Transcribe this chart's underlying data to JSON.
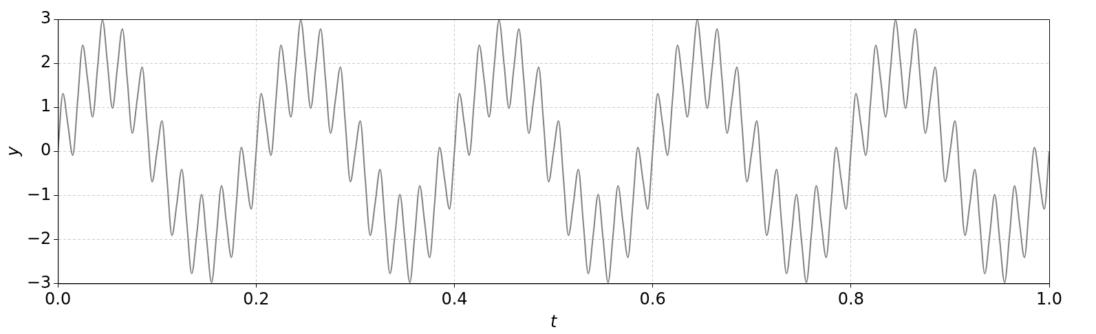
{
  "chart_data": {
    "type": "line",
    "xlabel": "t",
    "ylabel": "y",
    "x": [
      0,
      0.005,
      0.01,
      0.015,
      0.02,
      0.025,
      0.03,
      0.035,
      0.04,
      0.045,
      0.05,
      0.055,
      0.06,
      0.065,
      0.07,
      0.075,
      0.08,
      0.085,
      0.09,
      0.095,
      0.1,
      0.105,
      0.11,
      0.115,
      0.12,
      0.125,
      0.13,
      0.135,
      0.14,
      0.145,
      0.15,
      0.155,
      0.16,
      0.165,
      0.17,
      0.175,
      0.18,
      0.185,
      0.19,
      0.195,
      0.2,
      0.205,
      0.21,
      0.215,
      0.22,
      0.225,
      0.23,
      0.235,
      0.24,
      0.245,
      0.25,
      0.255,
      0.26,
      0.265,
      0.27,
      0.275,
      0.28,
      0.285,
      0.29,
      0.295,
      0.3,
      0.305,
      0.31,
      0.315,
      0.32,
      0.325,
      0.33,
      0.335,
      0.34,
      0.345,
      0.35,
      0.355,
      0.36,
      0.365,
      0.37,
      0.375,
      0.38,
      0.385,
      0.39,
      0.395,
      0.4,
      0.405,
      0.41,
      0.415,
      0.42,
      0.425,
      0.43,
      0.435,
      0.44,
      0.445,
      0.45,
      0.455,
      0.46,
      0.465,
      0.47,
      0.475,
      0.48,
      0.485,
      0.49,
      0.495,
      0.5,
      0.505,
      0.51,
      0.515,
      0.52,
      0.525,
      0.53,
      0.535,
      0.54,
      0.545,
      0.55,
      0.555,
      0.56,
      0.565,
      0.57,
      0.575,
      0.58,
      0.585,
      0.59,
      0.595,
      0.6,
      0.605,
      0.61,
      0.615,
      0.62,
      0.625,
      0.63,
      0.635,
      0.64,
      0.645,
      0.65,
      0.655,
      0.66,
      0.665,
      0.67,
      0.675,
      0.68,
      0.685,
      0.69,
      0.695,
      0.7,
      0.705,
      0.71,
      0.715,
      0.72,
      0.725,
      0.73,
      0.735,
      0.74,
      0.745,
      0.75,
      0.755,
      0.76,
      0.765,
      0.77,
      0.775,
      0.78,
      0.785,
      0.79,
      0.795,
      0.8,
      0.805,
      0.81,
      0.815,
      0.82,
      0.825,
      0.83,
      0.835,
      0.84,
      0.845,
      0.85,
      0.855,
      0.86,
      0.865,
      0.87,
      0.875,
      0.88,
      0.885,
      0.89,
      0.895,
      0.9,
      0.905,
      0.91,
      0.915,
      0.92,
      0.925,
      0.93,
      0.935,
      0.94,
      0.945,
      0.95,
      0.955,
      0.96,
      0.965,
      0.97,
      0.975,
      0.98,
      0.985,
      0.99,
      0.995,
      1
    ],
    "series": [
      {
        "color": "#808080",
        "values": [
          0,
          1.31,
          0.62,
          -0.09,
          1.18,
          2.41,
          1.62,
          0.78,
          1.9,
          2.98,
          2,
          0.98,
          1.9,
          2.78,
          1.62,
          0.41,
          1.18,
          1.91,
          0.62,
          -0.69,
          0,
          0.69,
          -0.62,
          -1.91,
          -1.18,
          -0.41,
          -1.62,
          -2.78,
          -1.9,
          -0.98,
          -2,
          -2.98,
          -1.9,
          -0.78,
          -1.62,
          -2.41,
          -1.18,
          0.09,
          -0.62,
          -1.31,
          0,
          1.31,
          0.62,
          -0.09,
          1.18,
          2.41,
          1.62,
          0.78,
          1.9,
          2.98,
          2,
          0.98,
          1.9,
          2.78,
          1.62,
          0.41,
          1.18,
          1.91,
          0.62,
          -0.69,
          0,
          0.69,
          -0.62,
          -1.91,
          -1.18,
          -0.41,
          -1.62,
          -2.78,
          -1.9,
          -0.98,
          -2,
          -2.98,
          -1.9,
          -0.78,
          -1.62,
          -2.41,
          -1.18,
          0.09,
          -0.62,
          -1.31,
          0,
          1.31,
          0.62,
          -0.09,
          1.18,
          2.41,
          1.62,
          0.78,
          1.9,
          2.98,
          2,
          0.98,
          1.9,
          2.78,
          1.62,
          0.41,
          1.18,
          1.91,
          0.62,
          -0.69,
          0,
          0.69,
          -0.62,
          -1.91,
          -1.18,
          -0.41,
          -1.62,
          -2.78,
          -1.9,
          -0.98,
          -2,
          -2.98,
          -1.9,
          -0.78,
          -1.62,
          -2.41,
          -1.18,
          0.09,
          -0.62,
          -1.31,
          0,
          1.31,
          0.62,
          -0.09,
          1.18,
          2.41,
          1.62,
          0.78,
          1.9,
          2.98,
          2,
          0.98,
          1.9,
          2.78,
          1.62,
          0.41,
          1.18,
          1.91,
          0.62,
          -0.69,
          0,
          0.69,
          -0.62,
          -1.91,
          -1.18,
          -0.41,
          -1.62,
          -2.78,
          -1.9,
          -0.98,
          -2,
          -2.98,
          -1.9,
          -0.78,
          -1.62,
          -2.41,
          -1.18,
          0.09,
          -0.62,
          -1.31,
          0,
          1.31,
          0.62,
          -0.09,
          1.18,
          2.41,
          1.62,
          0.78,
          1.9,
          2.98,
          2,
          0.98,
          1.9,
          2.78,
          1.62,
          0.41,
          1.18,
          1.91,
          0.62,
          -0.69,
          0,
          0.69,
          -0.62,
          -1.91,
          -1.18,
          -0.41,
          -1.62,
          -2.78,
          -1.9,
          -0.98,
          -2,
          -2.98,
          -1.9,
          -0.78,
          -1.62,
          -2.41,
          -1.18,
          0.09,
          -0.62,
          -1.31,
          0
        ]
      }
    ],
    "xlim": [
      0,
      1
    ],
    "xticks": [
      {
        "value": 0,
        "label": "0.0"
      },
      {
        "value": 0.2,
        "label": "0.2"
      },
      {
        "value": 0.4,
        "label": "0.4"
      },
      {
        "value": 0.6,
        "label": "0.6"
      },
      {
        "value": 0.8,
        "label": "0.8"
      },
      {
        "value": 1,
        "label": "1.0"
      }
    ],
    "ylim": [
      -3,
      3
    ],
    "yticks": [
      {
        "value": -3,
        "label": "−3"
      },
      {
        "value": -2,
        "label": "−2"
      },
      {
        "value": -1,
        "label": "−1"
      },
      0,
      1,
      2,
      3
    ],
    "grid": true,
    "legend": false,
    "marker": "none",
    "line_style": "solid"
  }
}
